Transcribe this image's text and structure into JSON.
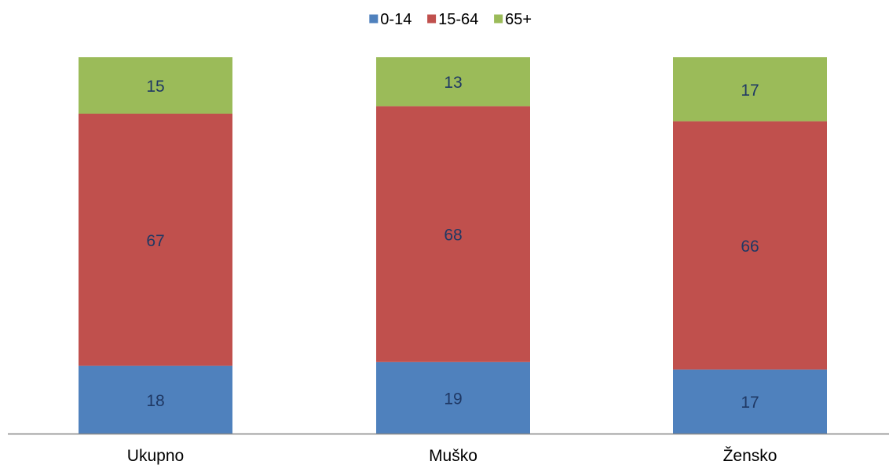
{
  "chart_data": {
    "type": "bar",
    "stacked": true,
    "title": "",
    "xlabel": "",
    "ylabel": "",
    "categories": [
      "Ukupno",
      "Muško",
      "Žensko"
    ],
    "series": [
      {
        "name": "0-14",
        "color": "#4f81bd",
        "values": [
          18,
          19,
          17
        ]
      },
      {
        "name": "15-64",
        "color": "#c0504d",
        "values": [
          67,
          68,
          66
        ]
      },
      {
        "name": "65+",
        "color": "#9bbb59",
        "values": [
          15,
          13,
          17
        ]
      }
    ],
    "ylim": [
      0,
      100
    ],
    "grid": false,
    "legend_position": "top-center",
    "data_label_color": "#1f3864",
    "axis_color": "#868686"
  }
}
